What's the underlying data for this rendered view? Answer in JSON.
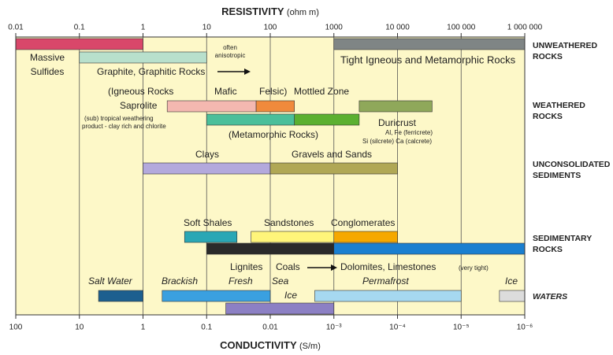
{
  "chart_data": {
    "type": "range",
    "x_title": "RESISTIVITY",
    "x_unit": "(ohm m)",
    "x2_title": "CONDUCTIVITY",
    "x2_unit": "(S/m)",
    "xscale": "log",
    "grid": true,
    "background": "#fdf8c8",
    "xlim": [
      0.01,
      1000000
    ],
    "xticks": [
      0.01,
      0.1,
      1,
      10,
      100,
      1000,
      {
        "value": 10000,
        "label": "10 000"
      },
      {
        "value": 100000,
        "label": "100 000"
      },
      {
        "value": 1000000,
        "label": "1 000 000"
      }
    ],
    "x2lim": [
      100,
      1e-06
    ],
    "x2ticks": [
      100,
      10,
      1,
      0.1,
      0.01,
      {
        "value": 0.001,
        "label": "10⁻³"
      },
      {
        "value": 0.0001,
        "label": "10⁻⁴"
      },
      {
        "value": 1e-05,
        "label": "10⁻⁵"
      },
      {
        "value": 1e-06,
        "label": "10⁻⁶"
      }
    ],
    "groups": [
      {
        "label": [
          "UNWEATHERED",
          "ROCKS"
        ],
        "lanes": [
          [
            {
              "values": [
                0.01,
                1
              ],
              "color": "#d9476a"
            },
            {
              "values": [
                1000,
                1000000
              ],
              "color": "#7f8585"
            }
          ],
          [
            {
              "values": [
                0.1,
                10
              ],
              "color": "#b8e0cc"
            }
          ]
        ]
      },
      {
        "label": [
          "WEATHERED",
          "ROCKS"
        ],
        "lanes": [
          [
            {
              "values": [
                2.4,
                60
              ],
              "color": "#f4b8b0"
            },
            {
              "values": [
                60,
                240
              ],
              "color": "#f08a3c"
            },
            {
              "values": [
                2500,
                35000
              ],
              "color": "#8fa85a"
            }
          ],
          [
            {
              "values": [
                10,
                240
              ],
              "color": "#4bbf9a"
            },
            {
              "values": [
                240,
                2500
              ],
              "color": "#5bb030"
            }
          ]
        ]
      },
      {
        "label": [
          "UNCONSOLIDATED",
          "SEDIMENTS"
        ],
        "lanes": [
          [
            {
              "values": [
                1,
                100
              ],
              "color": "#b3a9dc"
            },
            {
              "values": [
                100,
                10000
              ],
              "color": "#b0a855"
            }
          ]
        ]
      },
      {
        "label": [
          "SEDIMENTARY",
          "ROCKS"
        ],
        "lanes": [
          [
            {
              "values": [
                4.5,
                30
              ],
              "color": "#2aa7b5"
            },
            {
              "values": [
                50,
                1000
              ],
              "color": "#fff57a"
            },
            {
              "values": [
                1000,
                10000
              ],
              "color": "#f5a800"
            }
          ],
          [
            {
              "values": [
                10,
                1000
              ],
              "color": "#2a2a2a"
            },
            {
              "values": [
                1000,
                1000000
              ],
              "color": "#1a7fd0"
            }
          ]
        ]
      },
      {
        "label": [
          "WATERS"
        ],
        "lanes": [
          [
            {
              "values": [
                0.2,
                1
              ],
              "color": "#1d5f8f"
            },
            {
              "values": [
                2,
                100
              ],
              "color": "#3aa0e0"
            },
            {
              "values": [
                500,
                100000
              ],
              "color": "#a6d8f0"
            },
            {
              "values": [
                400000,
                1000000
              ],
              "color": "#dcdcdc"
            }
          ],
          [
            {
              "values": [
                20,
                1000
              ],
              "color": "#8c80c4"
            }
          ]
        ]
      }
    ],
    "annotations": [
      "Massive",
      "Sulfides",
      "often",
      "anisotropic",
      "Graphite, Graphitic Rocks",
      "Tight Igneous and Metamorphic Rocks",
      "(Igneous Rocks",
      "Mafic",
      "Felsic)",
      "Mottled Zone",
      "Saprolite",
      "(sub) tropical weathering",
      "product - clay rich and chlorite",
      "(Metamorphic Rocks)",
      "Duricrust",
      "Al, Fe (ferricrete)",
      "Si (silcrete) Ca (calcrete)",
      "Clays",
      "Gravels and Sands",
      "Soft Shales",
      "Sandstones",
      "Conglomerates",
      "Lignites",
      "Coals",
      "Dolomites, Limestones",
      "(very tight)",
      "Salt Water",
      "Brackish",
      "Fresh",
      "Sea",
      "Ice",
      "Permafrost",
      "Ice"
    ]
  }
}
